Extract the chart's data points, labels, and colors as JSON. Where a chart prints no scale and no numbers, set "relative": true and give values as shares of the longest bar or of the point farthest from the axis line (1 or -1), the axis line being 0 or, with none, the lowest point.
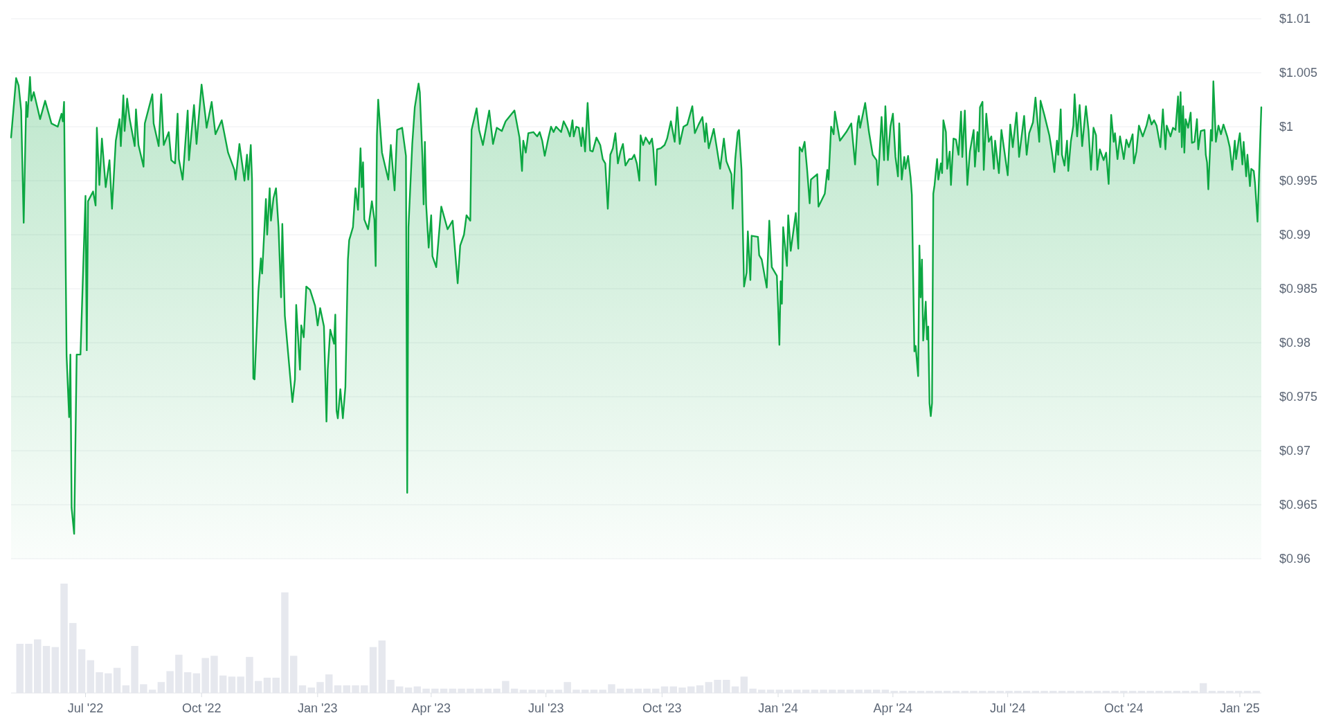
{
  "chart_data": [
    {
      "type": "area",
      "color": "#0ca742",
      "xlim": [
        "2022-05-03",
        "2025-01-18"
      ],
      "ylim": [
        0.96,
        1.01
      ],
      "yticks": [
        {
          "value": 0.96,
          "label": "$0.96"
        },
        {
          "value": 0.965,
          "label": "$0.965"
        },
        {
          "value": 0.97,
          "label": "$0.97"
        },
        {
          "value": 0.975,
          "label": "$0.975"
        },
        {
          "value": 0.98,
          "label": "$0.98"
        },
        {
          "value": 0.985,
          "label": "$0.985"
        },
        {
          "value": 0.99,
          "label": "$0.99"
        },
        {
          "value": 0.995,
          "label": "$0.995"
        },
        {
          "value": 1,
          "label": "$1"
        },
        {
          "value": 1.005,
          "label": "$1.005"
        },
        {
          "value": 1.01,
          "label": "$1.01"
        }
      ],
      "grid": "y",
      "tick_labels": "y",
      "x": [
        "2022-05-03",
        "2022-05-07",
        "2022-05-09",
        "2022-05-11",
        "2022-05-13",
        "2022-05-15",
        "2022-05-16",
        "2022-05-18",
        "2022-05-19",
        "2022-05-21",
        "2022-05-26",
        "2022-05-30",
        "2022-06-04",
        "2022-06-09",
        "2022-06-12",
        "2022-06-13",
        "2022-06-14",
        "2022-06-16",
        "2022-06-18",
        "2022-06-19",
        "2022-06-20",
        "2022-06-22",
        "2022-06-24",
        "2022-06-27",
        "2022-07-01",
        "2022-07-02",
        "2022-07-03",
        "2022-07-07",
        "2022-07-09",
        "2022-07-10",
        "2022-07-12",
        "2022-07-14",
        "2022-07-17",
        "2022-07-20",
        "2022-07-22",
        "2022-07-25",
        "2022-07-28",
        "2022-07-29",
        "2022-07-31",
        "2022-08-01",
        "2022-08-03",
        "2022-08-05",
        "2022-08-09",
        "2022-08-10",
        "2022-08-12",
        "2022-08-16",
        "2022-08-17",
        "2022-08-23",
        "2022-08-24",
        "2022-08-28",
        "2022-08-30",
        "2022-09-01",
        "2022-09-05",
        "2022-09-07",
        "2022-09-10",
        "2022-09-12",
        "2022-09-13",
        "2022-09-16",
        "2022-09-20",
        "2022-09-21",
        "2022-09-25",
        "2022-09-27",
        "2022-10-01",
        "2022-10-04",
        "2022-10-05",
        "2022-10-09",
        "2022-10-12",
        "2022-10-17",
        "2022-10-22",
        "2022-10-27",
        "2022-10-28",
        "2022-10-31",
        "2022-11-04",
        "2022-11-06",
        "2022-11-07",
        "2022-11-09",
        "2022-11-10",
        "2022-11-11",
        "2022-11-12",
        "2022-11-15",
        "2022-11-17",
        "2022-11-18",
        "2022-11-21",
        "2022-11-22",
        "2022-11-24",
        "2022-11-25",
        "2022-11-27",
        "2022-11-29",
        "2022-12-01",
        "2022-12-03",
        "2022-12-04",
        "2022-12-06",
        "2022-12-09",
        "2022-12-12",
        "2022-12-14",
        "2022-12-15",
        "2022-12-18",
        "2022-12-19",
        "2022-12-21",
        "2022-12-23",
        "2022-12-26",
        "2022-12-30",
        "2023-01-01",
        "2023-01-03",
        "2023-01-06",
        "2023-01-08",
        "2023-01-09",
        "2023-01-11",
        "2023-01-14",
        "2023-01-15",
        "2023-01-16",
        "2023-01-17",
        "2023-01-19",
        "2023-01-21",
        "2023-01-23",
        "2023-01-25",
        "2023-01-26",
        "2023-01-29",
        "2023-01-31",
        "2023-02-02",
        "2023-02-04",
        "2023-02-05",
        "2023-02-06",
        "2023-02-07",
        "2023-02-10",
        "2023-02-13",
        "2023-02-15",
        "2023-02-16",
        "2023-02-17",
        "2023-02-18",
        "2023-02-21",
        "2023-02-26",
        "2023-02-28",
        "2023-03-03",
        "2023-03-05",
        "2023-03-09",
        "2023-03-12",
        "2023-03-13",
        "2023-03-14",
        "2023-03-17",
        "2023-03-19",
        "2023-03-22",
        "2023-03-23",
        "2023-03-25",
        "2023-03-26",
        "2023-03-27",
        "2023-03-28",
        "2023-03-30",
        "2023-04-01",
        "2023-04-02",
        "2023-04-05",
        "2023-04-09",
        "2023-04-14",
        "2023-04-18",
        "2023-04-22",
        "2023-04-24",
        "2023-04-27",
        "2023-04-29",
        "2023-05-02",
        "2023-05-03",
        "2023-05-07",
        "2023-05-09",
        "2023-05-12",
        "2023-05-17",
        "2023-05-20",
        "2023-05-23",
        "2023-05-27",
        "2023-05-30",
        "2023-06-06",
        "2023-06-10",
        "2023-06-12",
        "2023-06-13",
        "2023-06-15",
        "2023-06-17",
        "2023-06-21",
        "2023-06-24",
        "2023-06-26",
        "2023-06-28",
        "2023-06-30",
        "2023-07-03",
        "2023-07-05",
        "2023-07-07",
        "2023-07-09",
        "2023-07-13",
        "2023-07-15",
        "2023-07-18",
        "2023-07-20",
        "2023-07-22",
        "2023-07-23",
        "2023-07-25",
        "2023-07-27",
        "2023-07-29",
        "2023-07-30",
        "2023-08-01",
        "2023-08-02",
        "2023-08-03",
        "2023-08-05",
        "2023-08-07",
        "2023-08-10",
        "2023-08-13",
        "2023-08-15",
        "2023-08-17",
        "2023-08-19",
        "2023-08-21",
        "2023-08-23",
        "2023-08-25",
        "2023-08-27",
        "2023-08-29",
        "2023-08-31",
        "2023-09-02",
        "2023-09-05",
        "2023-09-07",
        "2023-09-09",
        "2023-09-11",
        "2023-09-13",
        "2023-09-14",
        "2023-09-16",
        "2023-09-18",
        "2023-09-21",
        "2023-09-23",
        "2023-09-24",
        "2023-09-26",
        "2023-09-27",
        "2023-09-30",
        "2023-10-03",
        "2023-10-05",
        "2023-10-08",
        "2023-10-11",
        "2023-10-13",
        "2023-10-15",
        "2023-10-18",
        "2023-10-21",
        "2023-10-25",
        "2023-10-27",
        "2023-10-30",
        "2023-11-02",
        "2023-11-04",
        "2023-11-05",
        "2023-11-07",
        "2023-11-11",
        "2023-11-16",
        "2023-11-19",
        "2023-11-21",
        "2023-11-25",
        "2023-11-26",
        "2023-11-28",
        "2023-11-30",
        "2023-12-01",
        "2023-12-03",
        "2023-12-05",
        "2023-12-07",
        "2023-12-08",
        "2023-12-10",
        "2023-12-11",
        "2023-12-16",
        "2023-12-17",
        "2023-12-19",
        "2023-12-23",
        "2023-12-25",
        "2023-12-27",
        "2023-12-31",
        "2024-01-01",
        "2024-01-02",
        "2024-01-03",
        "2024-01-04",
        "2024-01-05",
        "2024-01-08",
        "2024-01-09",
        "2024-01-11",
        "2024-01-15",
        "2024-01-17",
        "2024-01-18",
        "2024-01-20",
        "2024-01-22",
        "2024-01-24",
        "2024-01-26",
        "2024-01-27",
        "2024-02-01",
        "2024-02-02",
        "2024-02-07",
        "2024-02-09",
        "2024-02-10",
        "2024-02-12",
        "2024-02-14",
        "2024-02-15",
        "2024-02-19",
        "2024-02-24",
        "2024-02-28",
        "2024-03-02",
        "2024-03-04",
        "2024-03-05",
        "2024-03-06",
        "2024-03-10",
        "2024-03-13",
        "2024-03-16",
        "2024-03-19",
        "2024-03-20",
        "2024-03-23",
        "2024-03-25",
        "2024-03-26",
        "2024-03-28",
        "2024-03-30",
        "2024-04-01",
        "2024-04-03",
        "2024-04-05",
        "2024-04-06",
        "2024-04-08",
        "2024-04-10",
        "2024-04-11",
        "2024-04-13",
        "2024-04-15",
        "2024-04-16",
        "2024-04-18",
        "2024-04-19",
        "2024-04-21",
        "2024-04-22",
        "2024-04-23",
        "2024-04-24",
        "2024-04-25",
        "2024-04-27",
        "2024-04-28",
        "2024-04-29",
        "2024-04-30",
        "2024-05-01",
        "2024-05-02",
        "2024-05-03",
        "2024-05-04",
        "2024-05-06",
        "2024-05-07",
        "2024-05-09",
        "2024-05-10",
        "2024-05-11",
        "2024-05-13",
        "2024-05-14",
        "2024-05-16",
        "2024-05-17",
        "2024-05-19",
        "2024-05-21",
        "2024-05-23",
        "2024-05-25",
        "2024-05-26",
        "2024-05-28",
        "2024-05-30",
        "2024-06-01",
        "2024-06-04",
        "2024-06-05",
        "2024-06-07",
        "2024-06-08",
        "2024-06-09",
        "2024-06-11",
        "2024-06-12",
        "2024-06-14",
        "2024-06-16",
        "2024-06-18",
        "2024-06-20",
        "2024-06-21",
        "2024-06-24",
        "2024-06-26",
        "2024-07-01",
        "2024-07-03",
        "2024-07-05",
        "2024-07-08",
        "2024-07-10",
        "2024-07-14",
        "2024-07-16",
        "2024-07-18",
        "2024-07-21",
        "2024-07-23",
        "2024-07-26",
        "2024-07-27",
        "2024-07-30",
        "2024-08-03",
        "2024-08-05",
        "2024-08-07",
        "2024-08-09",
        "2024-08-10",
        "2024-08-12",
        "2024-08-13",
        "2024-08-15",
        "2024-08-17",
        "2024-08-18",
        "2024-08-20",
        "2024-08-22",
        "2024-08-23",
        "2024-08-25",
        "2024-08-27",
        "2024-08-29",
        "2024-09-01",
        "2024-09-03",
        "2024-09-05",
        "2024-09-07",
        "2024-09-09",
        "2024-09-10",
        "2024-09-12",
        "2024-09-15",
        "2024-09-17",
        "2024-09-19",
        "2024-09-21",
        "2024-09-23",
        "2024-09-24",
        "2024-09-26",
        "2024-09-28",
        "2024-10-01",
        "2024-10-03",
        "2024-10-05",
        "2024-10-08",
        "2024-10-09",
        "2024-10-11",
        "2024-10-13",
        "2024-10-16",
        "2024-10-19",
        "2024-10-21",
        "2024-10-23",
        "2024-10-25",
        "2024-10-27",
        "2024-10-30",
        "2024-11-01",
        "2024-11-03",
        "2024-11-04",
        "2024-11-07",
        "2024-11-09",
        "2024-11-11",
        "2024-11-13",
        "2024-11-14",
        "2024-11-15",
        "2024-11-16",
        "2024-11-17",
        "2024-11-18",
        "2024-11-19",
        "2024-11-21",
        "2024-11-23",
        "2024-11-24",
        "2024-11-26",
        "2024-11-28",
        "2024-11-29",
        "2024-12-01",
        "2024-12-04",
        "2024-12-05",
        "2024-12-06",
        "2024-12-07",
        "2024-12-09",
        "2024-12-10",
        "2024-12-11",
        "2024-12-13",
        "2024-12-15",
        "2024-12-17",
        "2024-12-19",
        "2024-12-22",
        "2024-12-24",
        "2024-12-26",
        "2024-12-28",
        "2024-12-29",
        "2024-12-31",
        "2025-01-01",
        "2025-01-03",
        "2025-01-04",
        "2025-01-06",
        "2025-01-07",
        "2025-01-09",
        "2025-01-10",
        "2025-01-12",
        "2025-01-13",
        "2025-01-15",
        "2025-01-18"
      ],
      "values": [
        0.999,
        1.0045,
        1.0038,
        1.0015,
        0.9911,
        1.0023,
        1.0009,
        1.0046,
        1.0024,
        1.0032,
        1.0007,
        1.0024,
        1.0003,
        1,
        1.0012,
        1.0005,
        1.0023,
        0.9788,
        0.9731,
        0.9789,
        0.9647,
        0.9623,
        0.9789,
        0.9789,
        0.9936,
        0.9793,
        0.9931,
        0.994,
        0.9927,
        0.9999,
        0.9946,
        0.9989,
        0.9944,
        0.9969,
        0.9924,
        0.9987,
        1.0007,
        0.9982,
        1.0029,
        0.9996,
        1.0026,
        1.0007,
        0.9982,
        1.0016,
        0.9983,
        0.9963,
        1.0003,
        1.003,
        1.0003,
        0.9982,
        1.003,
        0.9983,
        0.9995,
        0.9969,
        0.9966,
        1.0012,
        0.997,
        0.9951,
        1.0015,
        0.9969,
        1.002,
        0.9984,
        1.0039,
        1.001,
        0.9999,
        1.0023,
        0.9993,
        1.0006,
        0.9976,
        0.996,
        0.9951,
        0.9984,
        0.995,
        0.9974,
        0.9951,
        0.9983,
        0.9951,
        0.9767,
        0.9766,
        0.9847,
        0.9878,
        0.9864,
        0.9933,
        0.99,
        0.9943,
        0.9913,
        0.9934,
        0.9943,
        0.9907,
        0.9842,
        0.991,
        0.9825,
        0.9785,
        0.9745,
        0.9766,
        0.9835,
        0.9775,
        0.9816,
        0.9805,
        0.9852,
        0.9849,
        0.9834,
        0.9816,
        0.9832,
        0.9815,
        0.9727,
        0.9775,
        0.9812,
        0.9799,
        0.9826,
        0.9737,
        0.973,
        0.9757,
        0.973,
        0.9759,
        0.9877,
        0.9895,
        0.9907,
        0.9943,
        0.9923,
        0.998,
        0.9944,
        0.9967,
        0.9914,
        0.9905,
        0.9931,
        0.9914,
        0.9871,
        0.9992,
        1.0025,
        0.9976,
        0.9951,
        0.9983,
        0.9941,
        0.9997,
        0.9999,
        0.9973,
        0.9661,
        0.9907,
        0.9984,
        1.0018,
        1.004,
        1.0032,
        0.9973,
        0.9928,
        0.9986,
        0.9928,
        0.9888,
        0.9918,
        0.988,
        0.987,
        0.9926,
        0.9905,
        0.9913,
        0.9855,
        0.989,
        0.99,
        0.9918,
        0.9913,
        0.9997,
        1.0017,
        0.9997,
        0.9983,
        1.0015,
        0.9984,
        0.9999,
        0.9996,
        1.0005,
        1.0015,
        0.999,
        0.9959,
        0.9987,
        0.9976,
        0.9994,
        0.9995,
        0.9991,
        0.9995,
        0.9987,
        0.9973,
        0.999,
        1,
        0.9995,
        1,
        0.9995,
        1.0005,
        0.9998,
        0.9991,
        1.0006,
        0.9991,
        1,
        0.9999,
        0.9982,
        0.9999,
        0.9977,
        0.9999,
        1.0022,
        0.9978,
        0.9977,
        0.999,
        0.9983,
        0.997,
        0.9966,
        0.9924,
        0.9974,
        0.998,
        0.9994,
        0.9966,
        0.9977,
        0.9984,
        0.9964,
        0.997,
        0.997,
        0.9974,
        0.9966,
        0.995,
        0.9992,
        0.9983,
        0.999,
        0.9984,
        0.9989,
        0.998,
        0.9946,
        0.9979,
        0.998,
        0.9983,
        0.9989,
        1.0005,
        0.9986,
        1.0018,
        0.9984,
        1,
        1.0002,
        1.0019,
        0.9994,
        1.0002,
        1.0009,
        0.9986,
        1.0003,
        0.998,
        0.9998,
        0.9961,
        0.9989,
        0.9968,
        0.9956,
        0.9924,
        0.997,
        0.9995,
        0.9997,
        0.996,
        0.9852,
        0.9865,
        0.9903,
        0.9858,
        0.9899,
        0.9898,
        0.9881,
        0.9877,
        0.9851,
        0.9913,
        0.987,
        0.9862,
        0.9833,
        0.9798,
        0.9857,
        0.9836,
        0.9907,
        0.9871,
        0.9918,
        0.9885,
        0.992,
        0.9887,
        0.9981,
        0.9977,
        0.9986,
        0.996,
        0.9929,
        0.9951,
        0.9956,
        0.9926,
        0.9938,
        0.996,
        0.9951,
        1,
        0.9993,
        1.0014,
        0.9987,
        0.9995,
        1.0003,
        0.9965,
        1.0003,
        1.001,
        0.9999,
        1.0022,
        0.9995,
        0.9974,
        0.9969,
        0.9946,
        1.0009,
        0.9969,
        1.0019,
        0.9969,
        1,
        1.0012,
        0.9972,
        0.9954,
        1.0003,
        0.9951,
        0.9972,
        0.9961,
        0.9973,
        0.9953,
        0.9937,
        0.9792,
        0.9797,
        0.9769,
        0.989,
        0.9842,
        0.9877,
        0.9802,
        0.9838,
        0.9803,
        0.9815,
        0.9744,
        0.9732,
        0.9744,
        0.9938,
        0.9946,
        0.997,
        0.9951,
        0.9966,
        0.9957,
        1.0006,
        0.9995,
        0.9961,
        0.9977,
        0.9946,
        0.9989,
        0.9988,
        0.9974,
        1.0014,
        0.9972,
        1.0015,
        0.9946,
        0.9977,
        0.9997,
        0.9963,
        0.9995,
        0.9977,
        1.0018,
        1.0023,
        0.996,
        1.0012,
        0.9986,
        0.9991,
        0.9961,
        0.9987,
        0.9957,
        0.9997,
        0.9955,
        1.0002,
        0.9981,
        1.0013,
        0.9972,
        1.001,
        0.9974,
        0.9994,
        1.0004,
        1.0027,
        0.9986,
        1.0024,
        1.0011,
        0.9992,
        0.9977,
        0.9958,
        0.9987,
        0.9974,
        1.0016,
        0.9974,
        0.9964,
        0.9987,
        0.9959,
        0.9986,
        1.0001,
        1.003,
        0.9991,
        1.002,
        0.9982,
        1.0019,
        0.9997,
        0.996,
        0.9999,
        0.9992,
        0.996,
        0.9979,
        0.9969,
        0.9976,
        0.9947,
        1.0011,
        0.9986,
        0.9994,
        0.997,
        0.9991,
        0.997,
        0.9988,
        0.9981,
        0.9993,
        0.9966,
        0.9977,
        1.0001,
        0.9991,
        1.0001,
        1.0011,
        1.0002,
        1.0006,
        1.0001,
        0.9981,
        1.0016,
        0.9979,
        1.0001,
        0.9991,
        0.9999,
        0.9997,
        1.0028,
        0.9995,
        1.0032,
        0.9981,
        1.0019,
        0.9976,
        1.0007,
        0.9999,
        1.0013,
        0.9985,
        0.9986,
        1.0007,
        0.9979,
        0.9996,
        0.9997,
        0.9974,
        0.9967,
        0.9942,
        0.9997,
        0.9987,
        1.0042,
        0.9986,
        1.0001,
        0.9993,
        1.0002,
        0.9991,
        0.9981,
        0.996,
        0.9987,
        0.997,
        0.9987,
        0.9994,
        0.9965,
        0.9986,
        0.9954,
        0.9974,
        0.9945,
        0.9961,
        0.9959,
        0.9948,
        0.9912,
        1.0018
      ]
    },
    {
      "type": "bar",
      "relative": true,
      "color": "#e6e8ee",
      "xlim": [
        "2022-05-03",
        "2025-01-18"
      ],
      "tick_labels": "x",
      "xticks": [
        {
          "value": "2022-07-01",
          "label": "Jul '22"
        },
        {
          "value": "2022-10-01",
          "label": "Oct '22"
        },
        {
          "value": "2023-01-01",
          "label": "Jan '23"
        },
        {
          "value": "2023-04-01",
          "label": "Apr '23"
        },
        {
          "value": "2023-07-01",
          "label": "Jul '23"
        },
        {
          "value": "2023-10-01",
          "label": "Oct '23"
        },
        {
          "value": "2024-01-01",
          "label": "Jan '24"
        },
        {
          "value": "2024-04-01",
          "label": "Apr '24"
        },
        {
          "value": "2024-07-01",
          "label": "Jul '24"
        },
        {
          "value": "2024-10-01",
          "label": "Oct '24"
        },
        {
          "value": "2025-01-01",
          "label": "Jan '25"
        }
      ],
      "x": [
        "2022-05-10",
        "2022-05-17",
        "2022-05-24",
        "2022-05-31",
        "2022-06-07",
        "2022-06-14",
        "2022-06-21",
        "2022-06-28",
        "2022-07-05",
        "2022-07-12",
        "2022-07-19",
        "2022-07-26",
        "2022-08-02",
        "2022-08-09",
        "2022-08-16",
        "2022-08-23",
        "2022-08-30",
        "2022-09-06",
        "2022-09-13",
        "2022-09-20",
        "2022-09-27",
        "2022-10-04",
        "2022-10-11",
        "2022-10-18",
        "2022-10-25",
        "2022-11-01",
        "2022-11-08",
        "2022-11-15",
        "2022-11-22",
        "2022-11-29",
        "2022-12-06",
        "2022-12-13",
        "2022-12-20",
        "2022-12-27",
        "2023-01-03",
        "2023-01-10",
        "2023-01-17",
        "2023-01-24",
        "2023-01-31",
        "2023-02-07",
        "2023-02-14",
        "2023-02-21",
        "2023-02-28",
        "2023-03-07",
        "2023-03-14",
        "2023-03-21",
        "2023-03-28",
        "2023-04-04",
        "2023-04-11",
        "2023-04-18",
        "2023-04-25",
        "2023-05-02",
        "2023-05-09",
        "2023-05-16",
        "2023-05-23",
        "2023-05-30",
        "2023-06-06",
        "2023-06-13",
        "2023-06-20",
        "2023-06-27",
        "2023-07-04",
        "2023-07-11",
        "2023-07-18",
        "2023-07-25",
        "2023-08-01",
        "2023-08-08",
        "2023-08-15",
        "2023-08-22",
        "2023-08-29",
        "2023-09-05",
        "2023-09-12",
        "2023-09-19",
        "2023-09-26",
        "2023-10-03",
        "2023-10-10",
        "2023-10-17",
        "2023-10-24",
        "2023-10-31",
        "2023-11-07",
        "2023-11-14",
        "2023-11-21",
        "2023-11-28",
        "2023-12-05",
        "2023-12-12",
        "2023-12-19",
        "2023-12-26",
        "2024-01-02",
        "2024-01-09",
        "2024-01-16",
        "2024-01-23",
        "2024-01-30",
        "2024-02-06",
        "2024-02-13",
        "2024-02-20",
        "2024-02-27",
        "2024-03-05",
        "2024-03-12",
        "2024-03-19",
        "2024-03-26",
        "2024-04-02",
        "2024-04-09",
        "2024-04-16",
        "2024-04-23",
        "2024-04-30",
        "2024-05-07",
        "2024-05-14",
        "2024-05-21",
        "2024-05-28",
        "2024-06-04",
        "2024-06-11",
        "2024-06-18",
        "2024-06-25",
        "2024-07-02",
        "2024-07-09",
        "2024-07-16",
        "2024-07-23",
        "2024-07-30",
        "2024-08-06",
        "2024-08-13",
        "2024-08-20",
        "2024-08-27",
        "2024-09-03",
        "2024-09-10",
        "2024-09-17",
        "2024-09-24",
        "2024-10-01",
        "2024-10-08",
        "2024-10-15",
        "2024-10-22",
        "2024-10-29",
        "2024-11-05",
        "2024-11-12",
        "2024-11-19",
        "2024-11-26",
        "2024-12-03",
        "2024-12-10",
        "2024-12-17",
        "2024-12-24",
        "2024-12-31",
        "2025-01-07",
        "2025-01-14"
      ],
      "values": [
        0.45,
        0.45,
        0.49,
        0.43,
        0.42,
        1,
        0.64,
        0.4,
        0.3,
        0.19,
        0.18,
        0.23,
        0.07,
        0.43,
        0.08,
        0.03,
        0.1,
        0.2,
        0.35,
        0.19,
        0.18,
        0.32,
        0.34,
        0.16,
        0.15,
        0.15,
        0.33,
        0.11,
        0.14,
        0.14,
        0.92,
        0.34,
        0.07,
        0.05,
        0.1,
        0.17,
        0.07,
        0.07,
        0.07,
        0.07,
        0.42,
        0.48,
        0.12,
        0.06,
        0.05,
        0.06,
        0.04,
        0.04,
        0.04,
        0.04,
        0.04,
        0.04,
        0.04,
        0.04,
        0.04,
        0.11,
        0.04,
        0.03,
        0.03,
        0.03,
        0.03,
        0.03,
        0.1,
        0.03,
        0.03,
        0.03,
        0.03,
        0.08,
        0.04,
        0.04,
        0.04,
        0.04,
        0.04,
        0.06,
        0.06,
        0.05,
        0.06,
        0.07,
        0.1,
        0.12,
        0.12,
        0.06,
        0.15,
        0.04,
        0.03,
        0.03,
        0.03,
        0.03,
        0.03,
        0.03,
        0.03,
        0.03,
        0.03,
        0.03,
        0.03,
        0.03,
        0.03,
        0.03,
        0.03,
        0.02,
        0.02,
        0.02,
        0.02,
        0.02,
        0.02,
        0.02,
        0.02,
        0.02,
        0.02,
        0.02,
        0.02,
        0.02,
        0.02,
        0.02,
        0.02,
        0.02,
        0.02,
        0.02,
        0.02,
        0.02,
        0.02,
        0.02,
        0.02,
        0.02,
        0.02,
        0.02,
        0.02,
        0.02,
        0.02,
        0.02,
        0.02,
        0.02,
        0.02,
        0.02,
        0.09,
        0.02,
        0.02,
        0.02,
        0.02,
        0.02,
        0.02
      ]
    }
  ]
}
